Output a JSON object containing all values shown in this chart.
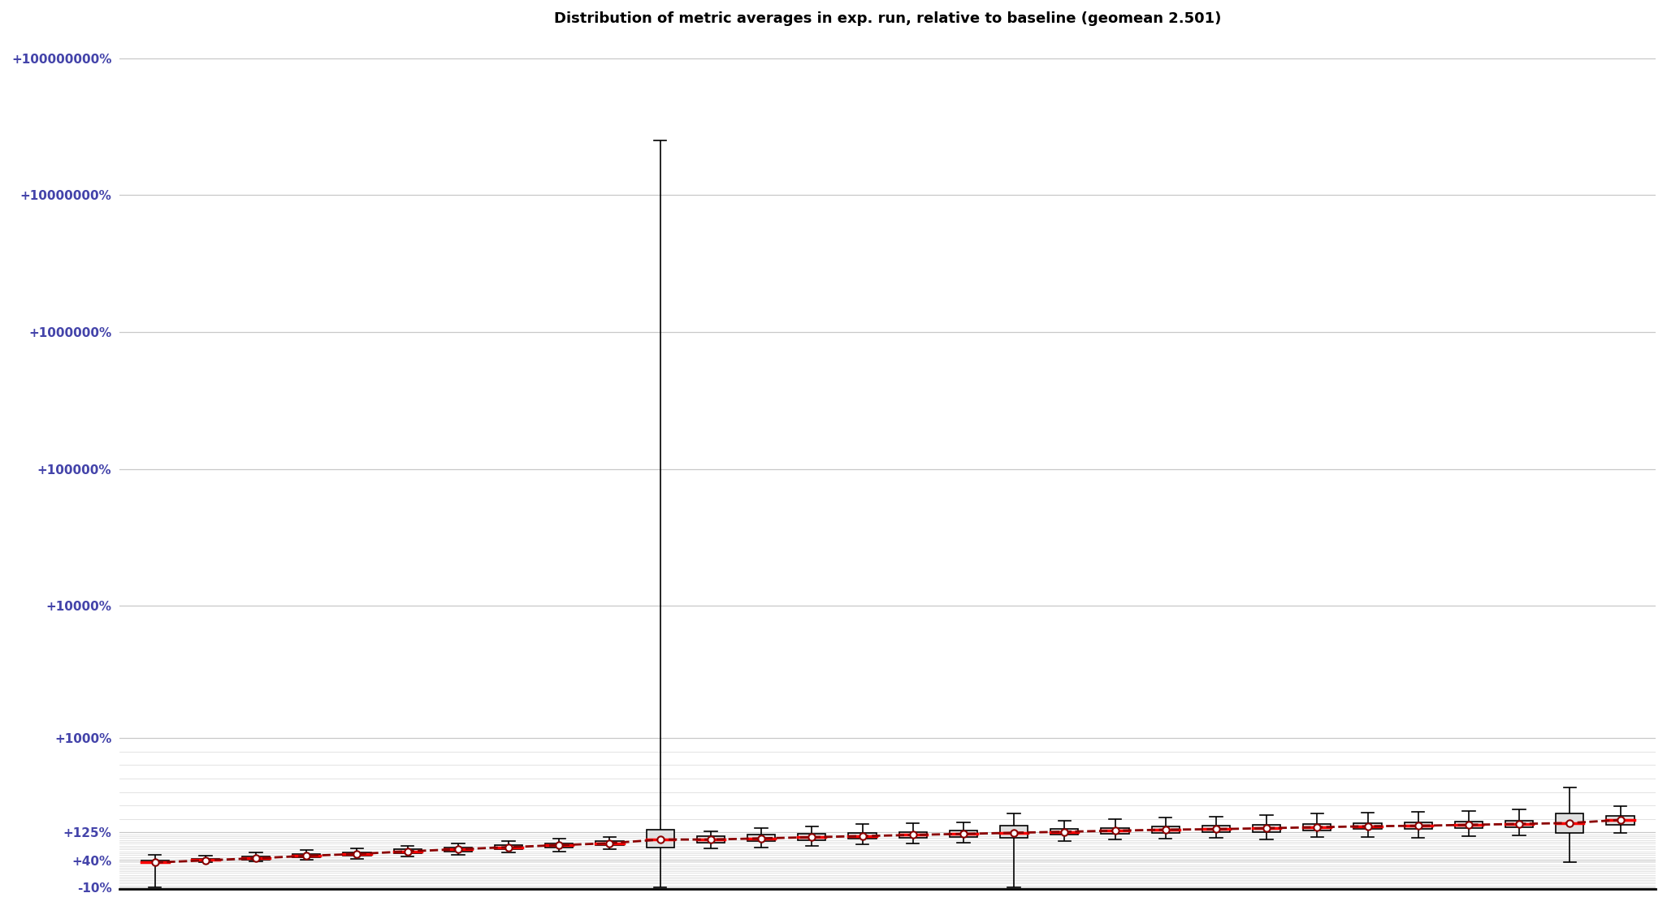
{
  "title": "Distribution of metric averages in exp. run, relative to baseline (geomean 2.501)",
  "title_fontsize": 13,
  "title_fontweight": "bold",
  "background_color": "#ffffff",
  "grid_color": "#c8c8c8",
  "fine_grid_color": "#d8d8d8",
  "ytick_labels": [
    "-10%",
    "+40%",
    "+125%",
    "+1000%",
    "+10000%",
    "+100000%",
    "+1000000%",
    "+10000000%",
    "+100000000%"
  ],
  "ytick_pcts": [
    -10,
    40,
    125,
    1000,
    10000,
    100000,
    1000000,
    10000000,
    100000000
  ],
  "ytick_color": "#4444aa",
  "box_data": [
    {
      "q1": 1.36,
      "median": 1.37,
      "q3": 1.4,
      "whisker_low": 0.9,
      "whisker_high": 1.55,
      "mean": 1.36
    },
    {
      "q1": 1.4,
      "median": 1.42,
      "q3": 1.44,
      "whisker_low": 1.37,
      "whisker_high": 1.52,
      "mean": 1.41
    },
    {
      "q1": 1.42,
      "median": 1.46,
      "q3": 1.5,
      "whisker_low": 1.38,
      "whisker_high": 1.6,
      "mean": 1.46
    },
    {
      "q1": 1.48,
      "median": 1.52,
      "q3": 1.57,
      "whisker_low": 1.42,
      "whisker_high": 1.68,
      "mean": 1.52
    },
    {
      "q1": 1.52,
      "median": 1.57,
      "q3": 1.62,
      "whisker_low": 1.45,
      "whisker_high": 1.72,
      "mean": 1.57
    },
    {
      "q1": 1.58,
      "median": 1.64,
      "q3": 1.7,
      "whisker_low": 1.5,
      "whisker_high": 1.8,
      "mean": 1.64
    },
    {
      "q1": 1.64,
      "median": 1.7,
      "q3": 1.76,
      "whisker_low": 1.55,
      "whisker_high": 1.88,
      "mean": 1.7
    },
    {
      "q1": 1.7,
      "median": 1.76,
      "q3": 1.82,
      "whisker_low": 1.6,
      "whisker_high": 1.95,
      "mean": 1.76
    },
    {
      "q1": 1.76,
      "median": 1.82,
      "q3": 1.88,
      "whisker_low": 1.64,
      "whisker_high": 2.02,
      "mean": 1.82
    },
    {
      "q1": 1.82,
      "median": 1.88,
      "q3": 1.94,
      "whisker_low": 1.7,
      "whisker_high": 2.1,
      "mean": 1.88
    },
    {
      "q1": 1.75,
      "median": 2.0,
      "q3": 2.35,
      "whisker_low": 0.9,
      "whisker_high": 250001.0,
      "mean": 2.0
    },
    {
      "q1": 1.9,
      "median": 2.0,
      "q3": 2.12,
      "whisker_low": 1.72,
      "whisker_high": 2.3,
      "mean": 2.0
    },
    {
      "q1": 1.94,
      "median": 2.04,
      "q3": 2.16,
      "whisker_low": 1.76,
      "whisker_high": 2.42,
      "mean": 2.04
    },
    {
      "q1": 1.98,
      "median": 2.08,
      "q3": 2.2,
      "whisker_low": 1.8,
      "whisker_high": 2.5,
      "mean": 2.08
    },
    {
      "q1": 2.02,
      "median": 2.12,
      "q3": 2.24,
      "whisker_low": 1.84,
      "whisker_high": 2.58,
      "mean": 2.12
    },
    {
      "q1": 2.06,
      "median": 2.16,
      "q3": 2.28,
      "whisker_low": 1.88,
      "whisker_high": 2.62,
      "mean": 2.16
    },
    {
      "q1": 2.1,
      "median": 2.2,
      "q3": 2.32,
      "whisker_low": 1.9,
      "whisker_high": 2.68,
      "mean": 2.2
    },
    {
      "q1": 2.06,
      "median": 2.24,
      "q3": 2.54,
      "whisker_low": 0.9,
      "whisker_high": 3.1,
      "mean": 2.24
    },
    {
      "q1": 2.16,
      "median": 2.28,
      "q3": 2.4,
      "whisker_low": 1.96,
      "whisker_high": 2.74,
      "mean": 2.28
    },
    {
      "q1": 2.2,
      "median": 2.32,
      "q3": 2.44,
      "whisker_low": 2.0,
      "whisker_high": 2.82,
      "mean": 2.32
    },
    {
      "q1": 2.24,
      "median": 2.36,
      "q3": 2.5,
      "whisker_low": 2.04,
      "whisker_high": 2.9,
      "mean": 2.36
    },
    {
      "q1": 2.26,
      "median": 2.38,
      "q3": 2.52,
      "whisker_low": 2.06,
      "whisker_high": 2.92,
      "mean": 2.38
    },
    {
      "q1": 2.28,
      "median": 2.42,
      "q3": 2.56,
      "whisker_low": 2.0,
      "whisker_high": 3.02,
      "mean": 2.42
    },
    {
      "q1": 2.34,
      "median": 2.46,
      "q3": 2.6,
      "whisker_low": 2.08,
      "whisker_high": 3.08,
      "mean": 2.46
    },
    {
      "q1": 2.38,
      "median": 2.5,
      "q3": 2.64,
      "whisker_low": 2.1,
      "whisker_high": 3.15,
      "mean": 2.5
    },
    {
      "q1": 2.38,
      "median": 2.52,
      "q3": 2.66,
      "whisker_low": 2.06,
      "whisker_high": 3.18,
      "mean": 2.52
    },
    {
      "q1": 2.42,
      "median": 2.56,
      "q3": 2.72,
      "whisker_low": 2.12,
      "whisker_high": 3.24,
      "mean": 2.56
    },
    {
      "q1": 2.46,
      "median": 2.6,
      "q3": 2.74,
      "whisker_low": 2.14,
      "whisker_high": 3.3,
      "mean": 2.6
    },
    {
      "q1": 2.24,
      "median": 2.64,
      "q3": 3.1,
      "whisker_low": 1.36,
      "whisker_high": 4.8,
      "mean": 2.64
    },
    {
      "q1": 2.56,
      "median": 2.76,
      "q3": 2.96,
      "whisker_low": 2.24,
      "whisker_high": 3.5,
      "mean": 2.78
    }
  ],
  "mean_line_color": "#8b0000",
  "mean_marker_facecolor": "#ffffff",
  "mean_marker_edgecolor": "#8b0000",
  "box_facecolor": "#e0e0e0",
  "box_edgecolor": "#000000",
  "median_color": "#ff0000",
  "whisker_color": "#000000",
  "dashed_line_style": "--",
  "ylim_low_pct": -10,
  "ylim_high_pct": 100000000,
  "num_fine_lines_lower": 14,
  "num_fine_lines_upper": 14
}
